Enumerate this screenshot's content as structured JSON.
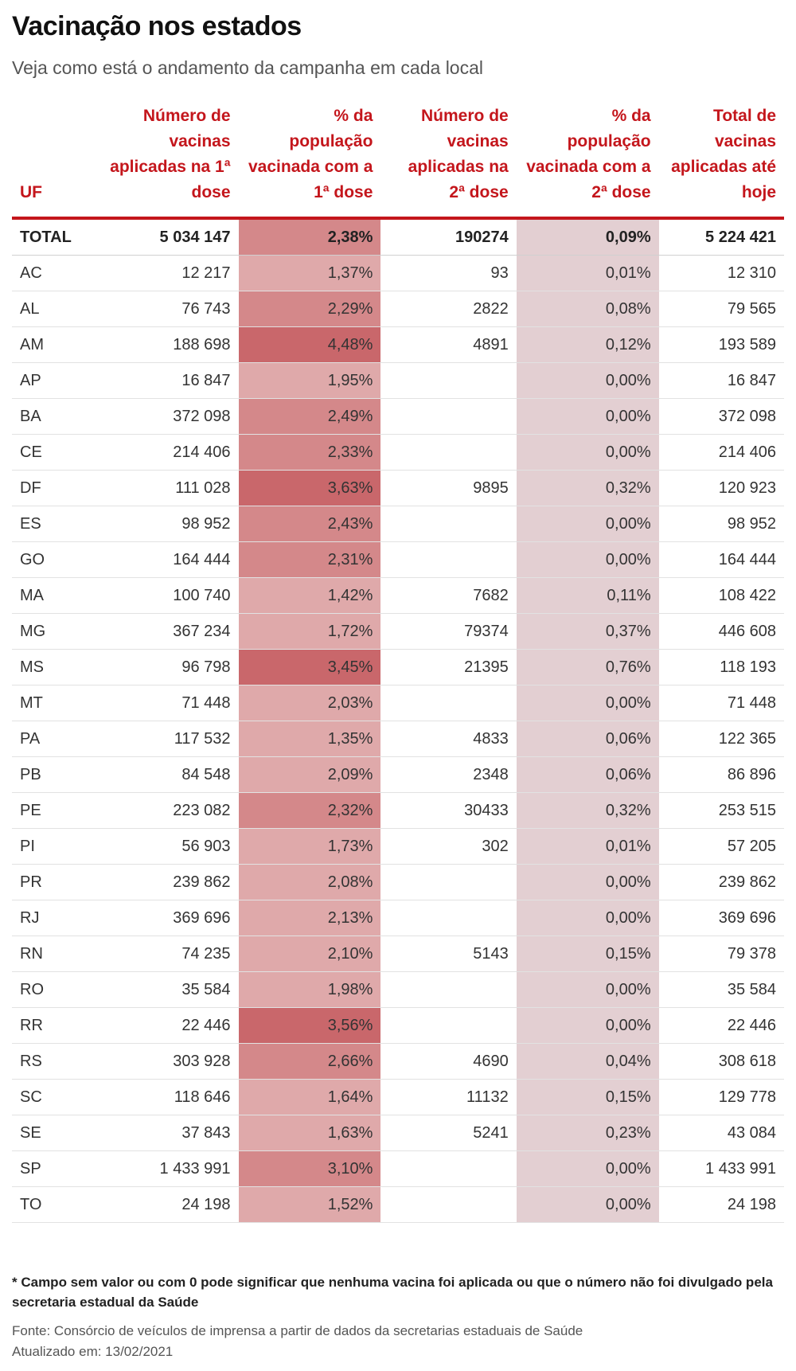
{
  "title": "Vacinação nos estados",
  "subtitle": "Veja como está o andamento da campanha em cada local",
  "colors": {
    "accent": "#c4161c",
    "pct1_light": "#dfa9aa",
    "pct1_mid": "#d4888a",
    "pct1_dark": "#c9676b",
    "pct2_bg": "#e3cfd2"
  },
  "chart_data": {
    "type": "table",
    "columns": [
      "UF",
      "Número de vacinas aplicadas na 1ª dose",
      "% da população vacinada com a 1ª dose",
      "Número de vacinas aplicadas na 2ª dose",
      "% da população vacinada com a 2ª dose",
      "Total de vacinas aplicadas até hoje"
    ],
    "rows": [
      {
        "uf": "TOTAL",
        "dose1": "5 034 147",
        "pct1": "2,38%",
        "pct1_value": 2.38,
        "dose2": "190274",
        "pct2": "0,09%",
        "total": "5 224 421"
      },
      {
        "uf": "AC",
        "dose1": "12 217",
        "pct1": "1,37%",
        "pct1_value": 1.37,
        "dose2": "93",
        "pct2": "0,01%",
        "total": "12 310"
      },
      {
        "uf": "AL",
        "dose1": "76 743",
        "pct1": "2,29%",
        "pct1_value": 2.29,
        "dose2": "2822",
        "pct2": "0,08%",
        "total": "79 565"
      },
      {
        "uf": "AM",
        "dose1": "188 698",
        "pct1": "4,48%",
        "pct1_value": 4.48,
        "dose2": "4891",
        "pct2": "0,12%",
        "total": "193 589"
      },
      {
        "uf": "AP",
        "dose1": "16 847",
        "pct1": "1,95%",
        "pct1_value": 1.95,
        "dose2": "",
        "pct2": "0,00%",
        "total": "16 847"
      },
      {
        "uf": "BA",
        "dose1": "372 098",
        "pct1": "2,49%",
        "pct1_value": 2.49,
        "dose2": "",
        "pct2": "0,00%",
        "total": "372 098"
      },
      {
        "uf": "CE",
        "dose1": "214 406",
        "pct1": "2,33%",
        "pct1_value": 2.33,
        "dose2": "",
        "pct2": "0,00%",
        "total": "214 406"
      },
      {
        "uf": "DF",
        "dose1": "111 028",
        "pct1": "3,63%",
        "pct1_value": 3.63,
        "dose2": "9895",
        "pct2": "0,32%",
        "total": "120 923"
      },
      {
        "uf": "ES",
        "dose1": "98 952",
        "pct1": "2,43%",
        "pct1_value": 2.43,
        "dose2": "",
        "pct2": "0,00%",
        "total": "98 952"
      },
      {
        "uf": "GO",
        "dose1": "164 444",
        "pct1": "2,31%",
        "pct1_value": 2.31,
        "dose2": "",
        "pct2": "0,00%",
        "total": "164 444"
      },
      {
        "uf": "MA",
        "dose1": "100 740",
        "pct1": "1,42%",
        "pct1_value": 1.42,
        "dose2": "7682",
        "pct2": "0,11%",
        "total": "108 422"
      },
      {
        "uf": "MG",
        "dose1": "367 234",
        "pct1": "1,72%",
        "pct1_value": 1.72,
        "dose2": "79374",
        "pct2": "0,37%",
        "total": "446 608"
      },
      {
        "uf": "MS",
        "dose1": "96 798",
        "pct1": "3,45%",
        "pct1_value": 3.45,
        "dose2": "21395",
        "pct2": "0,76%",
        "total": "118 193"
      },
      {
        "uf": "MT",
        "dose1": "71 448",
        "pct1": "2,03%",
        "pct1_value": 2.03,
        "dose2": "",
        "pct2": "0,00%",
        "total": "71 448"
      },
      {
        "uf": "PA",
        "dose1": "117 532",
        "pct1": "1,35%",
        "pct1_value": 1.35,
        "dose2": "4833",
        "pct2": "0,06%",
        "total": "122 365"
      },
      {
        "uf": "PB",
        "dose1": "84 548",
        "pct1": "2,09%",
        "pct1_value": 2.09,
        "dose2": "2348",
        "pct2": "0,06%",
        "total": "86 896"
      },
      {
        "uf": "PE",
        "dose1": "223 082",
        "pct1": "2,32%",
        "pct1_value": 2.32,
        "dose2": "30433",
        "pct2": "0,32%",
        "total": "253 515"
      },
      {
        "uf": "PI",
        "dose1": "56 903",
        "pct1": "1,73%",
        "pct1_value": 1.73,
        "dose2": "302",
        "pct2": "0,01%",
        "total": "57 205"
      },
      {
        "uf": "PR",
        "dose1": "239 862",
        "pct1": "2,08%",
        "pct1_value": 2.08,
        "dose2": "",
        "pct2": "0,00%",
        "total": "239 862"
      },
      {
        "uf": "RJ",
        "dose1": "369 696",
        "pct1": "2,13%",
        "pct1_value": 2.13,
        "dose2": "",
        "pct2": "0,00%",
        "total": "369 696"
      },
      {
        "uf": "RN",
        "dose1": "74 235",
        "pct1": "2,10%",
        "pct1_value": 2.1,
        "dose2": "5143",
        "pct2": "0,15%",
        "total": "79 378"
      },
      {
        "uf": "RO",
        "dose1": "35 584",
        "pct1": "1,98%",
        "pct1_value": 1.98,
        "dose2": "",
        "pct2": "0,00%",
        "total": "35 584"
      },
      {
        "uf": "RR",
        "dose1": "22 446",
        "pct1": "3,56%",
        "pct1_value": 3.56,
        "dose2": "",
        "pct2": "0,00%",
        "total": "22 446"
      },
      {
        "uf": "RS",
        "dose1": "303 928",
        "pct1": "2,66%",
        "pct1_value": 2.66,
        "dose2": "4690",
        "pct2": "0,04%",
        "total": "308 618"
      },
      {
        "uf": "SC",
        "dose1": "118 646",
        "pct1": "1,64%",
        "pct1_value": 1.64,
        "dose2": "11132",
        "pct2": "0,15%",
        "total": "129 778"
      },
      {
        "uf": "SE",
        "dose1": "37 843",
        "pct1": "1,63%",
        "pct1_value": 1.63,
        "dose2": "5241",
        "pct2": "0,23%",
        "total": "43 084"
      },
      {
        "uf": "SP",
        "dose1": "1 433 991",
        "pct1": "3,10%",
        "pct1_value": 3.1,
        "dose2": "",
        "pct2": "0,00%",
        "total": "1 433 991"
      },
      {
        "uf": "TO",
        "dose1": "24 198",
        "pct1": "1,52%",
        "pct1_value": 1.52,
        "dose2": "",
        "pct2": "0,00%",
        "total": "24 198"
      }
    ]
  },
  "footer": {
    "note": "* Campo sem valor ou com 0 pode significar que nenhuma vacina foi aplicada ou que o número não foi divulgado pela secretaria estadual da Saúde",
    "source": "Fonte: Consórcio de veículos de imprensa a partir de dados da secretarias estaduais de Saúde",
    "updated": "Atualizado em: 13/02/2021"
  }
}
